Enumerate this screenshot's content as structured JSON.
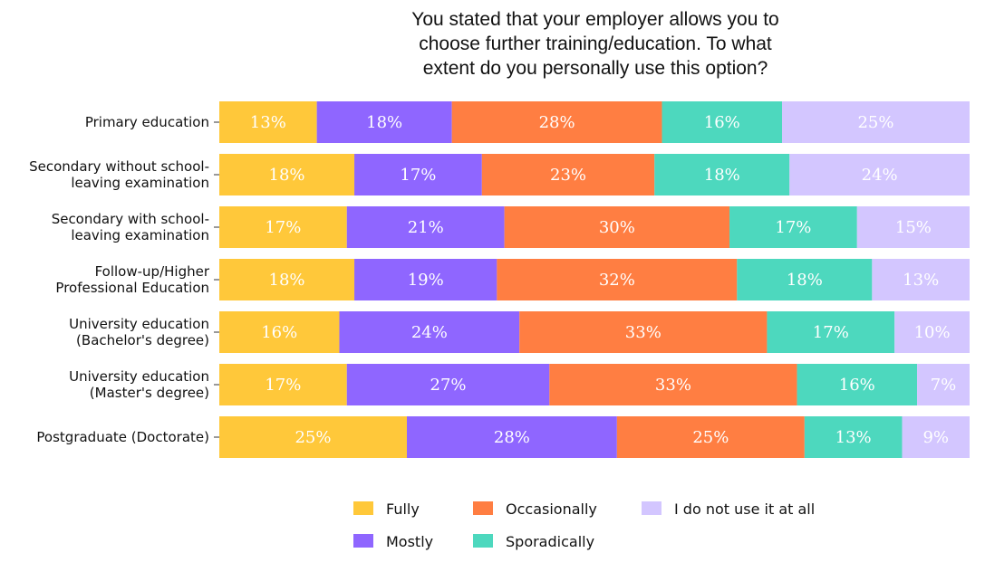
{
  "chart_data": {
    "type": "bar",
    "orientation": "horizontal",
    "stacked": true,
    "title": [
      "You stated that your employer allows you to",
      "choose further training/education. To what",
      "extent do you personally use this option?"
    ],
    "categories": [
      [
        "Primary education"
      ],
      [
        "Secondary without school-",
        "leaving examination"
      ],
      [
        "Secondary with school-",
        "leaving examination"
      ],
      [
        "Follow-up/Higher",
        "Professional Education"
      ],
      [
        "University education",
        "(Bachelor's degree)"
      ],
      [
        "University education",
        "(Master's degree)"
      ],
      [
        "Postgraduate (Doctorate)"
      ]
    ],
    "series": [
      {
        "name": "Fully",
        "color": "#FFC83A",
        "values": [
          13,
          18,
          17,
          18,
          16,
          17,
          25
        ]
      },
      {
        "name": "Mostly",
        "color": "#8F66FF",
        "values": [
          18,
          17,
          21,
          19,
          24,
          27,
          28
        ]
      },
      {
        "name": "Occasionally",
        "color": "#FF7E42",
        "values": [
          28,
          23,
          30,
          32,
          33,
          33,
          25
        ]
      },
      {
        "name": "Sporadically",
        "color": "#4DD8BE",
        "values": [
          16,
          18,
          17,
          18,
          17,
          16,
          13
        ]
      },
      {
        "name": "I do not use it at all",
        "color": "#D3C6FF",
        "values": [
          25,
          24,
          15,
          13,
          10,
          7,
          9
        ]
      }
    ],
    "value_suffix": "%",
    "xlim": [
      0,
      100
    ],
    "grid": false,
    "legend_position": "bottom"
  }
}
